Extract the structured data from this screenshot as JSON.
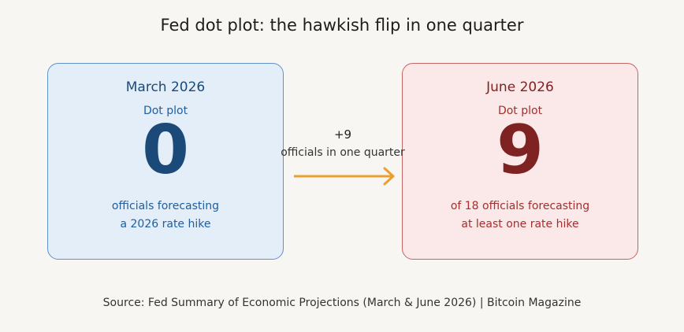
{
  "title": "Fed dot plot: the hawkish flip in one quarter",
  "cards": [
    {
      "heading": "March 2026",
      "subheading": "Dot plot",
      "number": 0,
      "caption": [
        "officials forecasting",
        "a 2026 rate hike"
      ]
    },
    {
      "heading": "June 2026",
      "subheading": "Dot plot",
      "number": 9,
      "caption": [
        "of 18 officials forecasting",
        "at least one rate hike"
      ]
    }
  ],
  "change": {
    "delta": "+9",
    "label": "officials in one quarter"
  },
  "source": "Source: Fed Summary of Economic Projections (March & June 2026) | Bitcoin Magazine"
}
